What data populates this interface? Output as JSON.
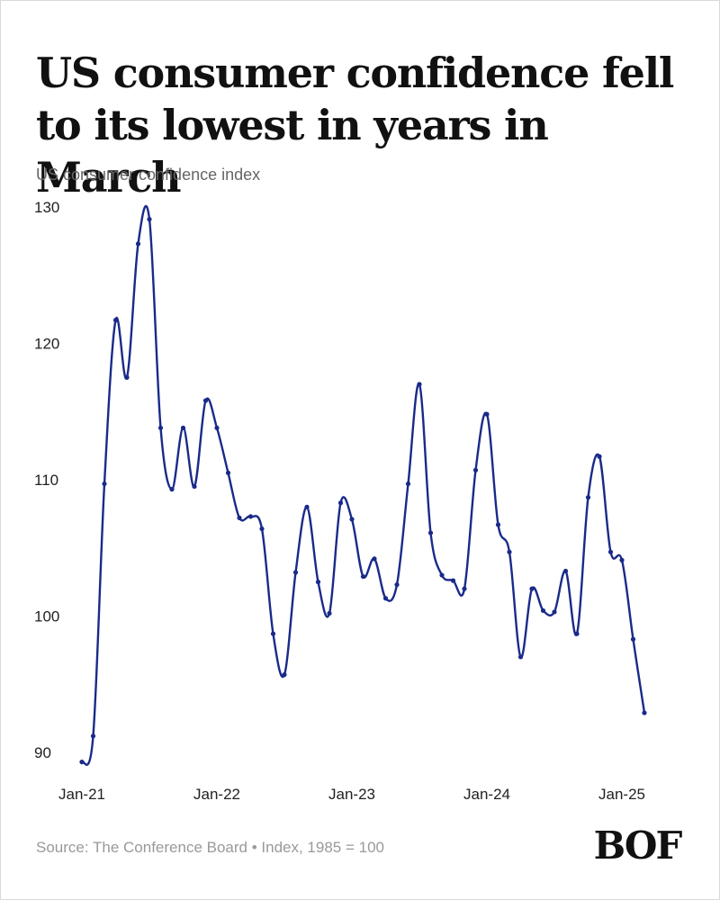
{
  "title": "US consumer confidence fell to its lowest in years in March",
  "subtitle": "US consumer confidence index",
  "source": "Source: The Conference Board • Index, 1985 = 100",
  "logo": {
    "icon": "bof-logo",
    "text": "BOF"
  },
  "colors": {
    "line": "#1a2a8a",
    "text": "#111111",
    "muted": "#999999"
  },
  "chart_data": {
    "type": "line",
    "title": "US consumer confidence fell to its lowest in years in March",
    "ylabel": "US consumer confidence index",
    "xlabel": "",
    "ylim": [
      90,
      130
    ],
    "yticks": [
      90,
      100,
      110,
      120,
      130
    ],
    "xtick_labels": [
      "Jan-21",
      "Jan-22",
      "Jan-23",
      "Jan-24",
      "Jan-25"
    ],
    "grid": false,
    "legend": "none",
    "series": [
      {
        "x": [
          "Jan-21",
          "Feb-21",
          "Mar-21",
          "Apr-21",
          "May-21",
          "Jun-21",
          "Jul-21",
          "Aug-21",
          "Sep-21",
          "Oct-21",
          "Nov-21",
          "Dec-21",
          "Jan-22",
          "Feb-22",
          "Mar-22",
          "Apr-22",
          "May-22",
          "Jun-22",
          "Jul-22",
          "Aug-22",
          "Sep-22",
          "Oct-22",
          "Nov-22",
          "Dec-22",
          "Jan-23",
          "Feb-23",
          "Mar-23",
          "Apr-23",
          "May-23",
          "Jun-23",
          "Jul-23",
          "Aug-23",
          "Sep-23",
          "Oct-23",
          "Nov-23",
          "Dec-23",
          "Jan-24",
          "Feb-24",
          "Mar-24",
          "Apr-24",
          "May-24",
          "Jun-24",
          "Jul-24",
          "Aug-24",
          "Sep-24",
          "Oct-24",
          "Nov-24",
          "Dec-24",
          "Jan-25",
          "Feb-25",
          "Mar-25"
        ],
        "values": [
          89.3,
          91.2,
          109.7,
          121.7,
          117.5,
          127.3,
          129.1,
          113.8,
          109.3,
          113.8,
          109.5,
          115.8,
          113.8,
          110.5,
          107.2,
          107.3,
          106.4,
          98.7,
          95.7,
          103.2,
          108.0,
          102.5,
          100.2,
          108.3,
          107.1,
          102.9,
          104.2,
          101.3,
          102.3,
          109.7,
          117.0,
          106.1,
          103.0,
          102.6,
          102.0,
          110.7,
          114.8,
          106.7,
          104.7,
          97.0,
          102.0,
          100.4,
          100.3,
          103.3,
          98.7,
          108.7,
          111.7,
          104.7,
          104.1,
          98.3,
          92.9
        ]
      }
    ]
  }
}
